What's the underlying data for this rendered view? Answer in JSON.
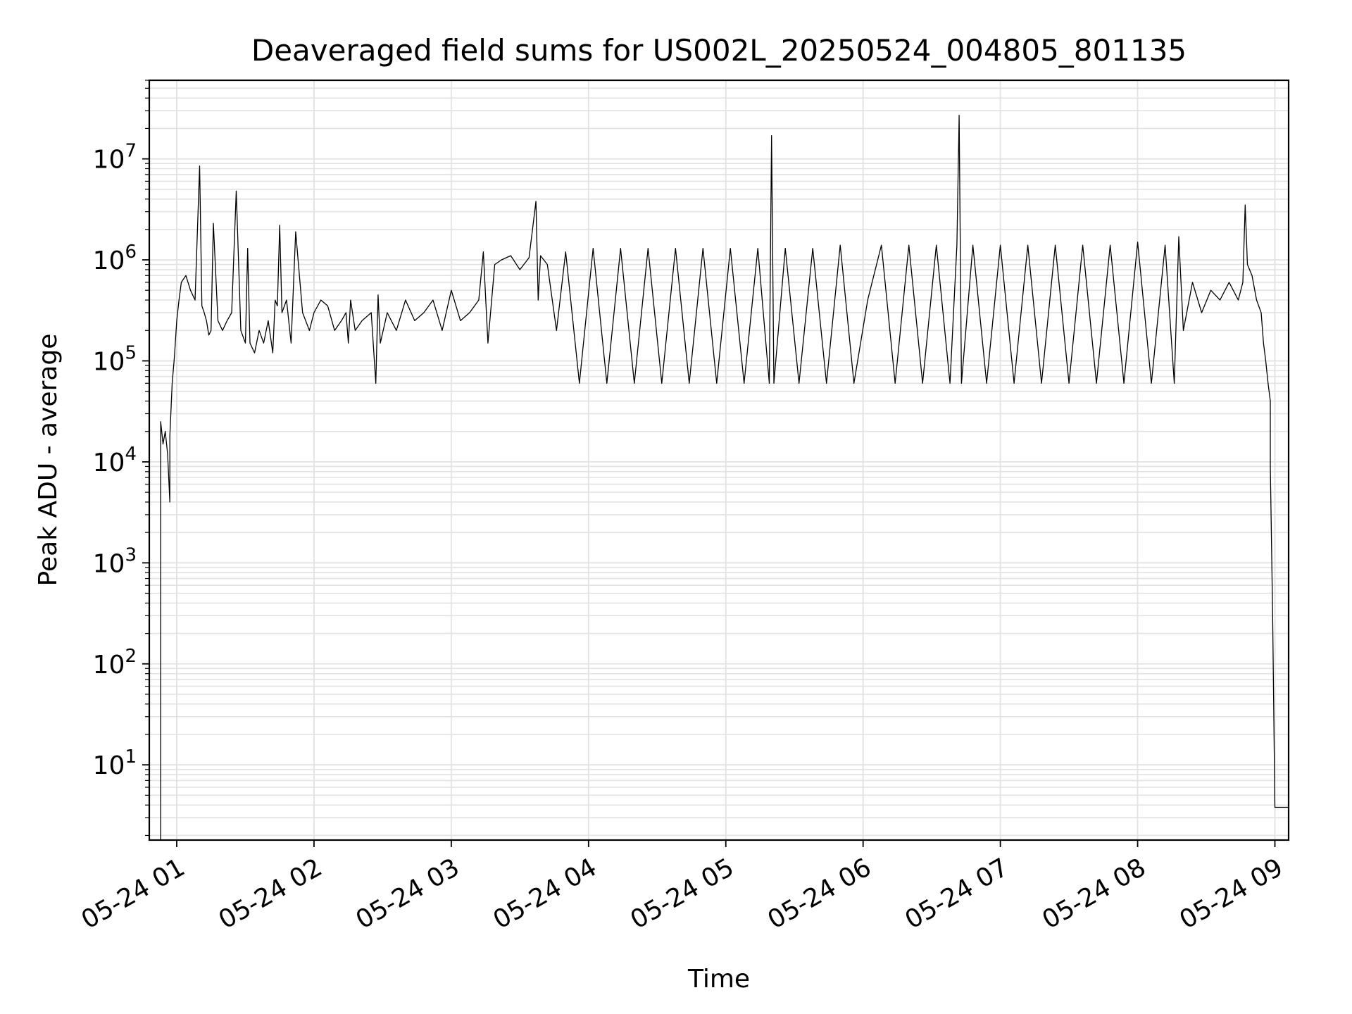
{
  "chart_data": {
    "type": "line",
    "title": "Deaveraged field sums for US002L_20250524_004805_801135",
    "xlabel": "Time",
    "ylabel": "Peak ADU - average",
    "yscale": "log",
    "grid": true,
    "legend": "none",
    "line_color": "#000000",
    "grid_color": "#e2e2e2",
    "xlim": [
      "2025-05-24 00:48",
      "2025-05-24 09:06"
    ],
    "ylim": [
      1.8,
      60000000
    ],
    "x_ticks": [
      {
        "value": "2025-05-24 01:00",
        "label": "05-24 01"
      },
      {
        "value": "2025-05-24 02:00",
        "label": "05-24 02"
      },
      {
        "value": "2025-05-24 03:00",
        "label": "05-24 03"
      },
      {
        "value": "2025-05-24 04:00",
        "label": "05-24 04"
      },
      {
        "value": "2025-05-24 05:00",
        "label": "05-24 05"
      },
      {
        "value": "2025-05-24 06:00",
        "label": "05-24 06"
      },
      {
        "value": "2025-05-24 07:00",
        "label": "05-24 07"
      },
      {
        "value": "2025-05-24 08:00",
        "label": "05-24 08"
      },
      {
        "value": "2025-05-24 09:00",
        "label": "05-24 09"
      }
    ],
    "y_ticks": [
      {
        "value": 10,
        "base": "10",
        "exp": "1"
      },
      {
        "value": 100,
        "base": "10",
        "exp": "2"
      },
      {
        "value": 1000,
        "base": "10",
        "exp": "3"
      },
      {
        "value": 10000,
        "base": "10",
        "exp": "4"
      },
      {
        "value": 100000,
        "base": "10",
        "exp": "5"
      },
      {
        "value": 1000000,
        "base": "10",
        "exp": "6"
      },
      {
        "value": 10000000,
        "base": "10",
        "exp": "7"
      }
    ],
    "series": [
      {
        "x": [
          "2025-05-24 00:53",
          "2025-05-24 00:53",
          "2025-05-24 00:54",
          "2025-05-24 00:55",
          "2025-05-24 00:56",
          "2025-05-24 00:57",
          "2025-05-24 00:57",
          "2025-05-24 00:58",
          "2025-05-24 00:59",
          "2025-05-24 01:00",
          "2025-05-24 01:01",
          "2025-05-24 01:02",
          "2025-05-24 01:04",
          "2025-05-24 01:06",
          "2025-05-24 01:08",
          "2025-05-24 01:10",
          "2025-05-24 01:11",
          "2025-05-24 01:12",
          "2025-05-24 01:13",
          "2025-05-24 01:14",
          "2025-05-24 01:15",
          "2025-05-24 01:16",
          "2025-05-24 01:18",
          "2025-05-24 01:20",
          "2025-05-24 01:22",
          "2025-05-24 01:24",
          "2025-05-24 01:26",
          "2025-05-24 01:28",
          "2025-05-24 01:30",
          "2025-05-24 01:31",
          "2025-05-24 01:32",
          "2025-05-24 01:34",
          "2025-05-24 01:36",
          "2025-05-24 01:38",
          "2025-05-24 01:40",
          "2025-05-24 01:42",
          "2025-05-24 01:43",
          "2025-05-24 01:44",
          "2025-05-24 01:45",
          "2025-05-24 01:46",
          "2025-05-24 01:48",
          "2025-05-24 01:50",
          "2025-05-24 01:52",
          "2025-05-24 01:55",
          "2025-05-24 01:58",
          "2025-05-24 02:00",
          "2025-05-24 02:03",
          "2025-05-24 02:06",
          "2025-05-24 02:09",
          "2025-05-24 02:12",
          "2025-05-24 02:14",
          "2025-05-24 02:15",
          "2025-05-24 02:16",
          "2025-05-24 02:18",
          "2025-05-24 02:21",
          "2025-05-24 02:25",
          "2025-05-24 02:27",
          "2025-05-24 02:28",
          "2025-05-24 02:29",
          "2025-05-24 02:32",
          "2025-05-24 02:36",
          "2025-05-24 02:40",
          "2025-05-24 02:44",
          "2025-05-24 02:48",
          "2025-05-24 02:52",
          "2025-05-24 02:56",
          "2025-05-24 03:00",
          "2025-05-24 03:04",
          "2025-05-24 03:08",
          "2025-05-24 03:12",
          "2025-05-24 03:14",
          "2025-05-24 03:16",
          "2025-05-24 03:19",
          "2025-05-24 03:22",
          "2025-05-24 03:26",
          "2025-05-24 03:30",
          "2025-05-24 03:34",
          "2025-05-24 03:37",
          "2025-05-24 03:38",
          "2025-05-24 03:39",
          "2025-05-24 03:42",
          "2025-05-24 03:46",
          "2025-05-24 03:50",
          "2025-05-24 03:56",
          "2025-05-24 04:02",
          "2025-05-24 04:08",
          "2025-05-24 04:14",
          "2025-05-24 04:20",
          "2025-05-24 04:26",
          "2025-05-24 04:32",
          "2025-05-24 04:38",
          "2025-05-24 04:44",
          "2025-05-24 04:50",
          "2025-05-24 04:56",
          "2025-05-24 05:02",
          "2025-05-24 05:08",
          "2025-05-24 05:14",
          "2025-05-24 05:19",
          "2025-05-24 05:20",
          "2025-05-24 05:21",
          "2025-05-24 05:26",
          "2025-05-24 05:32",
          "2025-05-24 05:38",
          "2025-05-24 05:44",
          "2025-05-24 05:50",
          "2025-05-24 05:56",
          "2025-05-24 06:02",
          "2025-05-24 06:08",
          "2025-05-24 06:14",
          "2025-05-24 06:20",
          "2025-05-24 06:26",
          "2025-05-24 06:32",
          "2025-05-24 06:38",
          "2025-05-24 06:41",
          "2025-05-24 06:42",
          "2025-05-24 06:43",
          "2025-05-24 06:48",
          "2025-05-24 06:54",
          "2025-05-24 07:00",
          "2025-05-24 07:06",
          "2025-05-24 07:12",
          "2025-05-24 07:18",
          "2025-05-24 07:24",
          "2025-05-24 07:30",
          "2025-05-24 07:36",
          "2025-05-24 07:42",
          "2025-05-24 07:48",
          "2025-05-24 07:54",
          "2025-05-24 08:00",
          "2025-05-24 08:06",
          "2025-05-24 08:12",
          "2025-05-24 08:16",
          "2025-05-24 08:18",
          "2025-05-24 08:20",
          "2025-05-24 08:24",
          "2025-05-24 08:28",
          "2025-05-24 08:32",
          "2025-05-24 08:36",
          "2025-05-24 08:40",
          "2025-05-24 08:44",
          "2025-05-24 08:46",
          "2025-05-24 08:47",
          "2025-05-24 08:48",
          "2025-05-24 08:50",
          "2025-05-24 08:52",
          "2025-05-24 08:54",
          "2025-05-24 08:55",
          "2025-05-24 08:56",
          "2025-05-24 08:57",
          "2025-05-24 08:58",
          "2025-05-24 08:58",
          "2025-05-24 08:59",
          "2025-05-24 09:00",
          "2025-05-24 09:02",
          "2025-05-24 09:04",
          "2025-05-24 09:06"
        ],
        "y": [
          1.8,
          25000,
          15000,
          20000,
          12000,
          4000,
          18000,
          60000,
          110000,
          250000,
          400000,
          600000,
          700000,
          500000,
          400000,
          8500000,
          350000,
          300000,
          250000,
          180000,
          200000,
          2300000,
          250000,
          200000,
          250000,
          300000,
          4800000,
          200000,
          150000,
          1300000,
          150000,
          120000,
          200000,
          150000,
          250000,
          120000,
          400000,
          350000,
          2200000,
          300000,
          400000,
          150000,
          1900000,
          300000,
          200000,
          300000,
          400000,
          350000,
          200000,
          250000,
          300000,
          150000,
          400000,
          200000,
          250000,
          300000,
          60000,
          450000,
          150000,
          300000,
          200000,
          400000,
          250000,
          300000,
          400000,
          200000,
          500000,
          250000,
          300000,
          400000,
          1200000,
          150000,
          900000,
          1000000,
          1100000,
          800000,
          1050000,
          3800000,
          400000,
          1100000,
          900000,
          200000,
          1200000,
          60000,
          1300000,
          60000,
          1300000,
          60000,
          1300000,
          60000,
          1300000,
          60000,
          1300000,
          60000,
          1300000,
          60000,
          1300000,
          60000,
          17000000,
          60000,
          1300000,
          60000,
          1300000,
          60000,
          1400000,
          60000,
          400000,
          1400000,
          60000,
          1400000,
          60000,
          1400000,
          60000,
          1400000,
          27000000,
          60000,
          1400000,
          60000,
          1400000,
          60000,
          1400000,
          60000,
          1400000,
          60000,
          1400000,
          60000,
          1400000,
          60000,
          1500000,
          60000,
          1400000,
          60000,
          1700000,
          200000,
          600000,
          300000,
          500000,
          400000,
          600000,
          400000,
          600000,
          3500000,
          900000,
          700000,
          400000,
          300000,
          150000,
          100000,
          60000,
          40000,
          9000,
          300,
          3.8,
          3.8,
          3.8,
          3.8
        ]
      }
    ]
  }
}
